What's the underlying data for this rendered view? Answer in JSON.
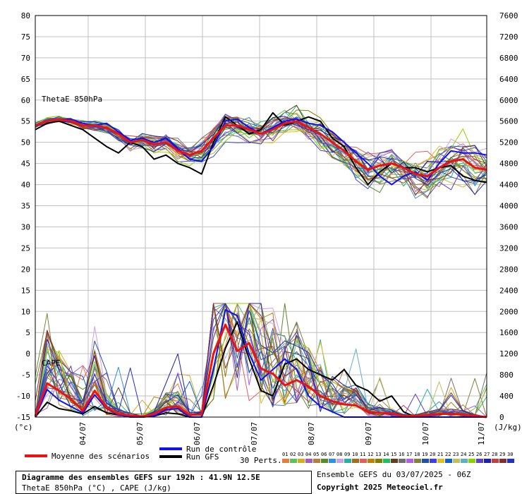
{
  "chart_data": {
    "type": "line",
    "panels": [
      {
        "label": "ThetaE 850hPa",
        "unit": "(°c)",
        "axis": "left",
        "ylim": [
          -15,
          80
        ],
        "ticks": [
          80,
          75,
          70,
          65,
          60,
          55,
          50,
          45,
          40,
          35,
          30,
          25,
          20,
          15,
          10,
          5,
          0,
          -5,
          -10,
          -15
        ]
      },
      {
        "label": "CAPE",
        "unit": "(J/kg)",
        "axis": "right",
        "ylim": [
          0,
          7600
        ],
        "ticks": [
          7600,
          7200,
          6800,
          6400,
          6000,
          5600,
          5200,
          4800,
          4400,
          4000,
          3600,
          3200,
          2800,
          2400,
          2000,
          1600,
          1200,
          800,
          400,
          0
        ]
      }
    ],
    "x_labels": [
      "04/07",
      "05/07",
      "06/07",
      "07/07",
      "08/07",
      "09/07",
      "10/07",
      "11/07"
    ],
    "thetae_series": {
      "mean": [
        54,
        55,
        55.5,
        55,
        54,
        54,
        53.5,
        52,
        50,
        50.5,
        49.5,
        50,
        48,
        47,
        48,
        51,
        54,
        54,
        53,
        52,
        53,
        54.5,
        55,
        53.5,
        52,
        50,
        48,
        45.5,
        43.5,
        44.5,
        45,
        44,
        42.5,
        42,
        44,
        45.5,
        46,
        44,
        43.5
      ],
      "control": [
        54,
        55,
        55.5,
        55.5,
        54.5,
        54,
        54.5,
        52.5,
        50.5,
        51,
        50,
        51,
        48.5,
        46,
        45.5,
        49,
        55,
        55.5,
        53.5,
        52,
        53.5,
        55,
        55.5,
        54.5,
        54,
        52.5,
        50,
        47.5,
        45,
        42,
        40,
        42,
        43,
        41,
        45,
        48,
        47.5,
        47.5,
        47
      ],
      "gfs": [
        53,
        54.5,
        55,
        54,
        53,
        51,
        49,
        47.5,
        50,
        49,
        46,
        47,
        45,
        44,
        42.5,
        50,
        56,
        54,
        52,
        53,
        57,
        54,
        55,
        56,
        55,
        51,
        49,
        44,
        40,
        43,
        45,
        44,
        44,
        43,
        44,
        44.5,
        42,
        41,
        40.5
      ]
    },
    "cape_series": {
      "mean": [
        20,
        640,
        500,
        340,
        120,
        500,
        180,
        60,
        30,
        10,
        60,
        180,
        200,
        40,
        50,
        1200,
        1750,
        1250,
        1400,
        920,
        820,
        600,
        700,
        580,
        400,
        300,
        240,
        220,
        100,
        80,
        70,
        20,
        20,
        40,
        60,
        60,
        50,
        20,
        0
      ],
      "control": [
        0,
        520,
        320,
        200,
        80,
        420,
        160,
        40,
        0,
        0,
        20,
        140,
        160,
        0,
        0,
        900,
        2030,
        1920,
        1200,
        700,
        900,
        1100,
        900,
        400,
        200,
        100,
        0,
        0,
        0,
        0,
        0,
        0,
        0,
        0,
        0,
        0,
        0,
        0,
        0
      ],
      "gfs": [
        0,
        280,
        160,
        120,
        60,
        200,
        80,
        40,
        20,
        0,
        20,
        80,
        60,
        0,
        0,
        600,
        1300,
        1800,
        1100,
        500,
        400,
        1000,
        1100,
        900,
        800,
        700,
        900,
        600,
        500,
        300,
        400,
        100,
        0,
        0,
        0,
        0,
        0,
        0,
        0
      ]
    },
    "series_legend": [
      "Moyenne des scénarios",
      "Run de contrôle",
      "Run GFS"
    ],
    "perturbations_label": "30 Perts.",
    "perturbation_numbers": [
      "01",
      "02",
      "03",
      "04",
      "05",
      "06",
      "07",
      "08",
      "09",
      "10",
      "11",
      "12",
      "13",
      "14",
      "15",
      "16",
      "17",
      "18",
      "19",
      "20",
      "21",
      "22",
      "23",
      "24",
      "25",
      "26",
      "27",
      "28",
      "29",
      "30"
    ],
    "colors": {
      "mean": "#ee1111",
      "control": "#1010ee",
      "gfs": "#000000",
      "grid": "#c0c0c0",
      "perturbations": [
        "#e08040",
        "#60c060",
        "#d0b020",
        "#a060c0",
        "#b08040",
        "#5a8a2a",
        "#3090e0",
        "#d0a0e0",
        "#2ab0a0",
        "#a07020",
        "#e06060",
        "#c08000",
        "#808000",
        "#20c060",
        "#604020",
        "#707070",
        "#b060e0",
        "#808040",
        "#2050a0",
        "#4040e0",
        "#e0c020",
        "#1060d0",
        "#c0c060",
        "#60b0c0",
        "#90d000",
        "#6040c0",
        "#2020a0",
        "#c04040",
        "#803030",
        "#2030c0"
      ]
    },
    "grid": true
  },
  "footer": {
    "title": "Diagramme des ensembles GEFS sur 192h : 41.9N 12.5E",
    "subtitle": "ThetaE 850hPa (°C) , CAPE (J/kg)",
    "run_info": "Ensemble GEFS du 03/07/2025 - 06Z",
    "copyright": "Copyright 2025 Meteociel.fr"
  }
}
